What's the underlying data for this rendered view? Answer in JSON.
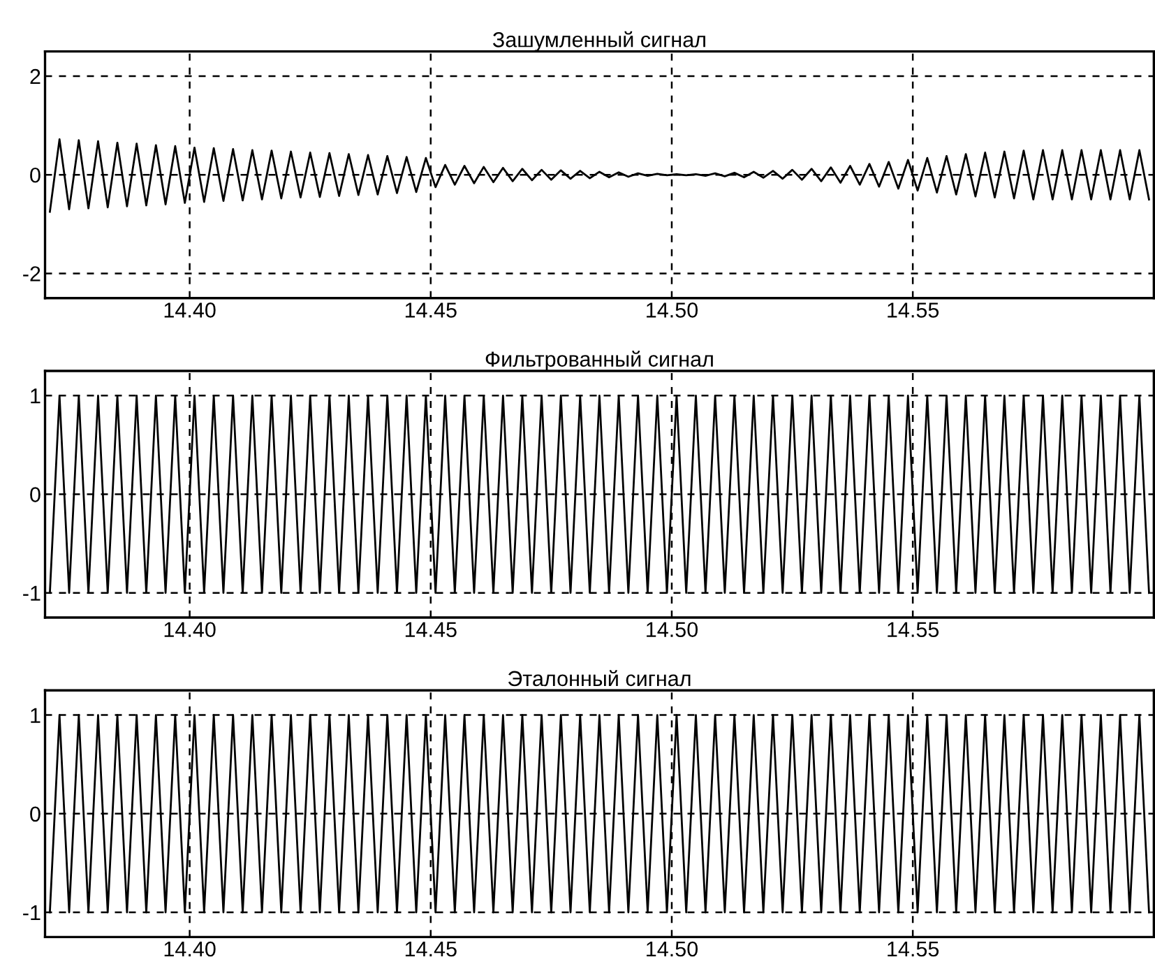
{
  "chart_data": [
    {
      "type": "line",
      "title": "Зашумленный сигнал",
      "grid": true,
      "line_style": "solid",
      "marker": "none",
      "xlim": [
        14.37,
        14.6
      ],
      "ylim": [
        -2.5,
        2.5
      ],
      "yticks": [
        -2,
        0,
        2
      ],
      "xticks": [
        {
          "value": 14.4,
          "label": "14.40"
        },
        {
          "value": 14.45,
          "label": "14.45"
        },
        {
          "value": 14.5,
          "label": "14.50"
        },
        {
          "value": 14.55,
          "label": "14.55"
        }
      ],
      "series": [
        {
          "color": "#000000",
          "x": [
            14.371,
            14.373,
            14.375,
            14.377,
            14.379,
            14.381,
            14.383,
            14.385,
            14.387,
            14.389,
            14.391,
            14.393,
            14.395,
            14.397,
            14.399,
            14.401,
            14.403,
            14.405,
            14.407,
            14.409,
            14.411,
            14.413,
            14.415,
            14.417,
            14.419,
            14.421,
            14.423,
            14.425,
            14.427,
            14.429,
            14.431,
            14.433,
            14.435,
            14.437,
            14.439,
            14.441,
            14.443,
            14.445,
            14.447,
            14.449,
            14.451,
            14.453,
            14.455,
            14.457,
            14.459,
            14.461,
            14.463,
            14.465,
            14.467,
            14.469,
            14.471,
            14.473,
            14.475,
            14.477,
            14.479,
            14.481,
            14.483,
            14.485,
            14.487,
            14.489,
            14.491,
            14.493,
            14.495,
            14.497,
            14.499,
            14.501,
            14.503,
            14.505,
            14.507,
            14.509,
            14.511,
            14.513,
            14.515,
            14.517,
            14.519,
            14.521,
            14.523,
            14.525,
            14.527,
            14.529,
            14.531,
            14.533,
            14.535,
            14.537,
            14.539,
            14.541,
            14.543,
            14.545,
            14.547,
            14.549,
            14.551,
            14.553,
            14.555,
            14.557,
            14.559,
            14.561,
            14.563,
            14.565,
            14.567,
            14.569,
            14.571,
            14.573,
            14.575,
            14.577,
            14.579,
            14.581,
            14.583,
            14.585,
            14.587,
            14.589,
            14.591,
            14.593,
            14.595,
            14.597,
            14.599
          ],
          "values": [
            -0.75,
            0.72,
            -0.7,
            0.7,
            -0.68,
            0.68,
            -0.66,
            0.65,
            -0.64,
            0.63,
            -0.62,
            0.6,
            -0.6,
            0.58,
            -0.57,
            0.55,
            -0.55,
            0.54,
            -0.53,
            0.52,
            -0.52,
            0.5,
            -0.5,
            0.49,
            -0.48,
            0.47,
            -0.46,
            0.45,
            -0.45,
            0.44,
            -0.43,
            0.42,
            -0.41,
            0.4,
            -0.4,
            0.38,
            -0.37,
            0.36,
            -0.35,
            0.34,
            -0.25,
            0.2,
            -0.2,
            0.18,
            -0.17,
            0.16,
            -0.15,
            0.14,
            -0.13,
            0.12,
            -0.11,
            0.1,
            -0.1,
            0.09,
            -0.08,
            0.08,
            -0.07,
            0.06,
            -0.05,
            0.05,
            -0.04,
            0.03,
            -0.02,
            0.02,
            -0.01,
            0.01,
            -0.01,
            0.01,
            -0.02,
            0.03,
            -0.03,
            0.04,
            -0.05,
            0.06,
            -0.06,
            0.08,
            -0.08,
            0.1,
            -0.1,
            0.12,
            -0.13,
            0.15,
            -0.16,
            0.18,
            -0.2,
            0.22,
            -0.24,
            0.26,
            -0.28,
            0.3,
            -0.32,
            0.34,
            -0.36,
            0.38,
            -0.4,
            0.42,
            -0.44,
            0.45,
            -0.46,
            0.47,
            -0.48,
            0.49,
            -0.5,
            0.5,
            -0.5,
            0.5,
            -0.5,
            0.5,
            -0.5,
            0.5,
            -0.5,
            0.5,
            -0.5,
            0.5,
            -0.5
          ]
        }
      ]
    },
    {
      "type": "line",
      "title": "Фильтрованный сигнал",
      "grid": true,
      "line_style": "solid",
      "marker": "none",
      "xlim": [
        14.37,
        14.6
      ],
      "ylim": [
        -1.25,
        1.25
      ],
      "yticks": [
        -1,
        0,
        1
      ],
      "xticks": [
        {
          "value": 14.4,
          "label": "14.40"
        },
        {
          "value": 14.45,
          "label": "14.45"
        },
        {
          "value": 14.5,
          "label": "14.50"
        },
        {
          "value": 14.55,
          "label": "14.55"
        }
      ],
      "series": [
        {
          "color": "#000000",
          "x": [
            14.371,
            14.373,
            14.375,
            14.377,
            14.379,
            14.381,
            14.383,
            14.385,
            14.387,
            14.389,
            14.391,
            14.393,
            14.395,
            14.397,
            14.399,
            14.401,
            14.403,
            14.405,
            14.407,
            14.409,
            14.411,
            14.413,
            14.415,
            14.417,
            14.419,
            14.421,
            14.423,
            14.425,
            14.427,
            14.429,
            14.431,
            14.433,
            14.435,
            14.437,
            14.439,
            14.441,
            14.443,
            14.445,
            14.447,
            14.449,
            14.451,
            14.453,
            14.455,
            14.457,
            14.459,
            14.461,
            14.463,
            14.465,
            14.467,
            14.469,
            14.471,
            14.473,
            14.475,
            14.477,
            14.479,
            14.481,
            14.483,
            14.485,
            14.487,
            14.489,
            14.491,
            14.493,
            14.495,
            14.497,
            14.499,
            14.501,
            14.503,
            14.505,
            14.507,
            14.509,
            14.511,
            14.513,
            14.515,
            14.517,
            14.519,
            14.521,
            14.523,
            14.525,
            14.527,
            14.529,
            14.531,
            14.533,
            14.535,
            14.537,
            14.539,
            14.541,
            14.543,
            14.545,
            14.547,
            14.549,
            14.551,
            14.553,
            14.555,
            14.557,
            14.559,
            14.561,
            14.563,
            14.565,
            14.567,
            14.569,
            14.571,
            14.573,
            14.575,
            14.577,
            14.579,
            14.581,
            14.583,
            14.585,
            14.587,
            14.589,
            14.591,
            14.593,
            14.595,
            14.597,
            14.599
          ],
          "values": [
            -1,
            1,
            -1,
            1,
            -1,
            1,
            -1,
            1,
            -1,
            1,
            -1,
            1,
            -1,
            1,
            -1,
            1,
            -1,
            1,
            -1,
            1,
            -1,
            1,
            -1,
            1,
            -1,
            1,
            -1,
            1,
            -1,
            1,
            -1,
            1,
            -1,
            1,
            -1,
            1,
            -1,
            1,
            -1,
            1,
            -1,
            1,
            -1,
            1,
            -1,
            1,
            -1,
            1,
            -1,
            1,
            -1,
            1,
            -1,
            1,
            -1,
            1,
            -1,
            1,
            -1,
            1,
            -1,
            1,
            -1,
            1,
            -1,
            1,
            -1,
            1,
            -1,
            1,
            -1,
            1,
            -1,
            1,
            -1,
            1,
            -1,
            1,
            -1,
            1,
            -1,
            1,
            -1,
            1,
            -1,
            1,
            -1,
            1,
            -1,
            1,
            -1,
            1,
            -1,
            1,
            -1,
            1,
            -1,
            1,
            -1,
            1,
            -1,
            1,
            -1,
            1,
            -1,
            1,
            -1,
            1,
            -1,
            1,
            -1,
            1,
            -1,
            1,
            -1
          ]
        }
      ]
    },
    {
      "type": "line",
      "title": "Эталонный сигнал",
      "grid": true,
      "line_style": "solid",
      "marker": "none",
      "xlim": [
        14.37,
        14.6
      ],
      "ylim": [
        -1.25,
        1.25
      ],
      "yticks": [
        -1,
        0,
        1
      ],
      "xticks": [
        {
          "value": 14.4,
          "label": "14.40"
        },
        {
          "value": 14.45,
          "label": "14.45"
        },
        {
          "value": 14.5,
          "label": "14.50"
        },
        {
          "value": 14.55,
          "label": "14.55"
        }
      ],
      "series": [
        {
          "color": "#000000",
          "x": [
            14.371,
            14.373,
            14.375,
            14.377,
            14.379,
            14.381,
            14.383,
            14.385,
            14.387,
            14.389,
            14.391,
            14.393,
            14.395,
            14.397,
            14.399,
            14.401,
            14.403,
            14.405,
            14.407,
            14.409,
            14.411,
            14.413,
            14.415,
            14.417,
            14.419,
            14.421,
            14.423,
            14.425,
            14.427,
            14.429,
            14.431,
            14.433,
            14.435,
            14.437,
            14.439,
            14.441,
            14.443,
            14.445,
            14.447,
            14.449,
            14.451,
            14.453,
            14.455,
            14.457,
            14.459,
            14.461,
            14.463,
            14.465,
            14.467,
            14.469,
            14.471,
            14.473,
            14.475,
            14.477,
            14.479,
            14.481,
            14.483,
            14.485,
            14.487,
            14.489,
            14.491,
            14.493,
            14.495,
            14.497,
            14.499,
            14.501,
            14.503,
            14.505,
            14.507,
            14.509,
            14.511,
            14.513,
            14.515,
            14.517,
            14.519,
            14.521,
            14.523,
            14.525,
            14.527,
            14.529,
            14.531,
            14.533,
            14.535,
            14.537,
            14.539,
            14.541,
            14.543,
            14.545,
            14.547,
            14.549,
            14.551,
            14.553,
            14.555,
            14.557,
            14.559,
            14.561,
            14.563,
            14.565,
            14.567,
            14.569,
            14.571,
            14.573,
            14.575,
            14.577,
            14.579,
            14.581,
            14.583,
            14.585,
            14.587,
            14.589,
            14.591,
            14.593,
            14.595,
            14.597,
            14.599
          ],
          "values": [
            -1,
            1,
            -1,
            1,
            -1,
            1,
            -1,
            1,
            -1,
            1,
            -1,
            1,
            -1,
            1,
            -1,
            1,
            -1,
            1,
            -1,
            1,
            -1,
            1,
            -1,
            1,
            -1,
            1,
            -1,
            1,
            -1,
            1,
            -1,
            1,
            -1,
            1,
            -1,
            1,
            -1,
            1,
            -1,
            1,
            -1,
            1,
            -1,
            1,
            -1,
            1,
            -1,
            1,
            -1,
            1,
            -1,
            1,
            -1,
            1,
            -1,
            1,
            -1,
            1,
            -1,
            1,
            -1,
            1,
            -1,
            1,
            -1,
            1,
            -1,
            1,
            -1,
            1,
            -1,
            1,
            -1,
            1,
            -1,
            1,
            -1,
            1,
            -1,
            1,
            -1,
            1,
            -1,
            1,
            -1,
            1,
            -1,
            1,
            -1,
            1,
            -1,
            1,
            -1,
            1,
            -1,
            1,
            -1,
            1,
            -1,
            1,
            -1,
            1,
            -1,
            1,
            -1,
            1,
            -1,
            1,
            -1,
            1,
            -1,
            1,
            -1,
            1,
            -1
          ]
        }
      ]
    }
  ]
}
